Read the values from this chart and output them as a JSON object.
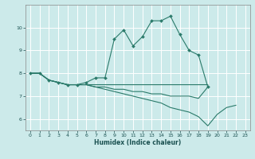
{
  "title": "",
  "xlabel": "Humidex (Indice chaleur)",
  "ylabel": "",
  "background_color": "#cceaea",
  "grid_color": "#ffffff",
  "line_color": "#2a7a6a",
  "xlim": [
    -0.5,
    23.5
  ],
  "ylim": [
    5.5,
    11.0
  ],
  "xticks": [
    0,
    1,
    2,
    3,
    4,
    5,
    6,
    7,
    8,
    9,
    10,
    11,
    12,
    13,
    14,
    15,
    16,
    17,
    18,
    19,
    20,
    21,
    22,
    23
  ],
  "yticks": [
    6,
    7,
    8,
    9,
    10
  ],
  "series": [
    {
      "x": [
        0,
        1,
        2,
        3,
        4,
        5,
        6,
        7,
        8,
        9,
        10,
        11,
        12,
        13,
        14,
        15,
        16,
        17,
        18,
        19
      ],
      "y": [
        8.0,
        8.0,
        7.7,
        7.6,
        7.5,
        7.5,
        7.6,
        7.8,
        7.8,
        9.5,
        9.9,
        9.2,
        9.6,
        10.3,
        10.3,
        10.5,
        9.7,
        9.0,
        8.8,
        7.4
      ],
      "marker": "D",
      "markersize": 2.0
    },
    {
      "x": [
        0,
        1,
        2,
        3,
        4,
        5,
        6,
        7,
        8,
        9,
        10,
        11,
        12,
        13,
        14,
        15,
        16,
        17,
        18,
        19
      ],
      "y": [
        8.0,
        8.0,
        7.7,
        7.6,
        7.5,
        7.5,
        7.5,
        7.5,
        7.5,
        7.5,
        7.5,
        7.5,
        7.5,
        7.5,
        7.5,
        7.5,
        7.5,
        7.5,
        7.5,
        7.5
      ],
      "marker": null,
      "markersize": 0
    },
    {
      "x": [
        0,
        1,
        2,
        3,
        4,
        5,
        6,
        7,
        8,
        9,
        10,
        11,
        12,
        13,
        14,
        15,
        16,
        17,
        18,
        19
      ],
      "y": [
        8.0,
        8.0,
        7.7,
        7.6,
        7.5,
        7.5,
        7.5,
        7.4,
        7.4,
        7.3,
        7.3,
        7.2,
        7.2,
        7.1,
        7.1,
        7.0,
        7.0,
        7.0,
        6.9,
        7.4
      ],
      "marker": null,
      "markersize": 0
    },
    {
      "x": [
        0,
        1,
        2,
        3,
        4,
        5,
        6,
        7,
        8,
        9,
        10,
        11,
        12,
        13,
        14,
        15,
        16,
        17,
        18,
        19,
        20,
        21,
        22
      ],
      "y": [
        8.0,
        8.0,
        7.7,
        7.6,
        7.5,
        7.5,
        7.5,
        7.4,
        7.3,
        7.2,
        7.1,
        7.0,
        6.9,
        6.8,
        6.7,
        6.5,
        6.4,
        6.3,
        6.1,
        5.7,
        6.2,
        6.5,
        6.6
      ],
      "marker": null,
      "markersize": 0
    }
  ]
}
